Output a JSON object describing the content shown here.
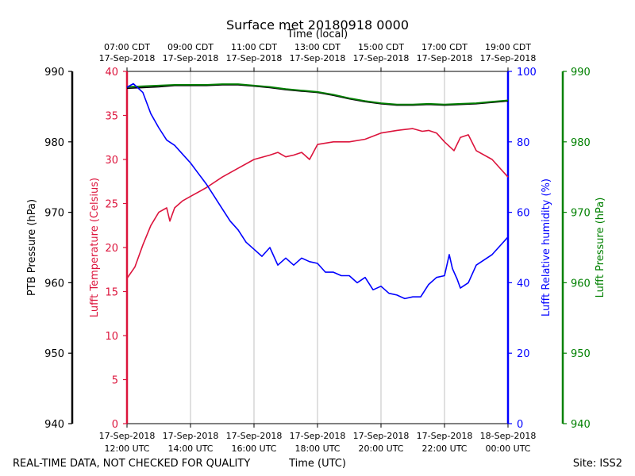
{
  "chart_data": {
    "type": "line",
    "title": "Surface met 20180918 0000",
    "top_axis_label": "Time (local)",
    "bottom_axis_label": "Time (UTC)",
    "footer_left": "REAL-TIME DATA, NOT CHECKED FOR QUALITY",
    "footer_right": "Site: ISS2",
    "x_range_hours": [
      12,
      24
    ],
    "bottom_ticks": [
      {
        "hour": 12,
        "line1": "17-Sep-2018",
        "line2": "12:00 UTC"
      },
      {
        "hour": 14,
        "line1": "17-Sep-2018",
        "line2": "14:00 UTC"
      },
      {
        "hour": 16,
        "line1": "17-Sep-2018",
        "line2": "16:00 UTC"
      },
      {
        "hour": 18,
        "line1": "17-Sep-2018",
        "line2": "18:00 UTC"
      },
      {
        "hour": 20,
        "line1": "17-Sep-2018",
        "line2": "20:00 UTC"
      },
      {
        "hour": 22,
        "line1": "17-Sep-2018",
        "line2": "22:00 UTC"
      },
      {
        "hour": 24,
        "line1": "18-Sep-2018",
        "line2": "00:00 UTC"
      }
    ],
    "top_ticks": [
      {
        "hour": 12,
        "line1": "07:00 CDT",
        "line2": "17-Sep-2018"
      },
      {
        "hour": 14,
        "line1": "09:00 CDT",
        "line2": "17-Sep-2018"
      },
      {
        "hour": 16,
        "line1": "11:00 CDT",
        "line2": "17-Sep-2018"
      },
      {
        "hour": 18,
        "line1": "13:00 CDT",
        "line2": "17-Sep-2018"
      },
      {
        "hour": 20,
        "line1": "15:00 CDT",
        "line2": "17-Sep-2018"
      },
      {
        "hour": 22,
        "line1": "17:00 CDT",
        "line2": "17-Sep-2018"
      },
      {
        "hour": 24,
        "line1": "19:00 CDT",
        "line2": "17-Sep-2018"
      }
    ],
    "axes": [
      {
        "id": "ptb",
        "label": "PTB Pressure (hPa)",
        "range": [
          940,
          990
        ],
        "ticks": [
          940,
          950,
          960,
          970,
          980,
          990
        ],
        "color": "#000000"
      },
      {
        "id": "temp",
        "label": "Lufft Temperature (Celsius)",
        "range": [
          0,
          40
        ],
        "ticks": [
          0,
          5,
          10,
          15,
          20,
          25,
          30,
          35,
          40
        ],
        "color": "#dc143c"
      },
      {
        "id": "rh",
        "label": "Lufft Relative humidity (%)",
        "range": [
          0,
          100
        ],
        "ticks": [
          0,
          20,
          40,
          60,
          80,
          100
        ],
        "color": "#0000ff"
      },
      {
        "id": "lufft_p",
        "label": "Lufft Pressure (hPa)",
        "range": [
          940,
          990
        ],
        "ticks": [
          940,
          950,
          960,
          970,
          980,
          990
        ],
        "color": "#008000"
      }
    ],
    "series": [
      {
        "name": "PTB Pressure",
        "axis": "ptb",
        "color": "#000000",
        "x": [
          12.0,
          12.5,
          13.0,
          13.5,
          14.0,
          14.5,
          15.0,
          15.5,
          16.0,
          16.5,
          17.0,
          17.5,
          18.0,
          18.5,
          19.0,
          19.5,
          20.0,
          20.5,
          21.0,
          21.5,
          22.0,
          22.5,
          23.0,
          23.5,
          24.0
        ],
        "values": [
          987.6,
          987.7,
          987.8,
          988.0,
          988.0,
          988.0,
          988.1,
          988.1,
          987.9,
          987.7,
          987.4,
          987.2,
          987.0,
          986.6,
          986.1,
          985.7,
          985.4,
          985.2,
          985.2,
          985.3,
          985.2,
          985.3,
          985.4,
          985.6,
          985.8
        ]
      },
      {
        "name": "Lufft Pressure",
        "axis": "lufft_p",
        "color": "#008000",
        "x": [
          12.0,
          12.5,
          13.0,
          13.5,
          14.0,
          14.5,
          15.0,
          15.5,
          16.0,
          16.5,
          17.0,
          17.5,
          18.0,
          18.5,
          19.0,
          19.5,
          20.0,
          20.5,
          21.0,
          21.5,
          22.0,
          22.5,
          23.0,
          23.5,
          24.0
        ],
        "values": [
          987.8,
          987.9,
          988.0,
          988.1,
          988.1,
          988.1,
          988.2,
          988.2,
          988.0,
          987.8,
          987.5,
          987.3,
          987.1,
          986.7,
          986.2,
          985.8,
          985.5,
          985.3,
          985.3,
          985.4,
          985.3,
          985.4,
          985.5,
          985.7,
          985.9
        ]
      },
      {
        "name": "Lufft Temperature",
        "axis": "temp",
        "color": "#dc143c",
        "x": [
          12.0,
          12.25,
          12.5,
          12.75,
          13.0,
          13.25,
          13.35,
          13.5,
          13.75,
          14.0,
          14.5,
          15.0,
          15.5,
          16.0,
          16.5,
          16.75,
          17.0,
          17.25,
          17.5,
          17.75,
          18.0,
          18.5,
          19.0,
          19.5,
          20.0,
          20.5,
          21.0,
          21.3,
          21.5,
          21.75,
          22.0,
          22.3,
          22.5,
          22.75,
          23.0,
          23.5,
          24.0
        ],
        "values": [
          16.5,
          17.8,
          20.3,
          22.5,
          24.0,
          24.5,
          23.0,
          24.5,
          25.3,
          25.8,
          26.8,
          28.0,
          29.0,
          30.0,
          30.5,
          30.8,
          30.3,
          30.5,
          30.8,
          30.0,
          31.7,
          32.0,
          32.0,
          32.3,
          33.0,
          33.3,
          33.5,
          33.2,
          33.3,
          33.0,
          32.0,
          31.0,
          32.5,
          32.8,
          31.0,
          30.0,
          28.0
        ]
      },
      {
        "name": "Lufft Relative humidity",
        "axis": "rh",
        "color": "#0000ff",
        "x": [
          12.0,
          12.2,
          12.5,
          12.75,
          13.0,
          13.25,
          13.5,
          13.75,
          14.0,
          14.25,
          14.5,
          14.75,
          15.0,
          15.25,
          15.5,
          15.75,
          16.0,
          16.25,
          16.5,
          16.75,
          17.0,
          17.25,
          17.5,
          17.75,
          18.0,
          18.25,
          18.5,
          18.75,
          19.0,
          19.25,
          19.5,
          19.75,
          20.0,
          20.25,
          20.5,
          20.75,
          21.0,
          21.25,
          21.5,
          21.75,
          22.0,
          22.15,
          22.25,
          22.4,
          22.5,
          22.75,
          23.0,
          23.5,
          24.0
        ],
        "values": [
          95.5,
          96.5,
          94.0,
          88.0,
          84.0,
          80.5,
          79.0,
          76.5,
          74.0,
          71.0,
          68.0,
          64.5,
          61.0,
          57.5,
          55.0,
          51.5,
          49.5,
          47.5,
          50.0,
          45.0,
          47.0,
          45.0,
          47.0,
          46.0,
          45.5,
          43.0,
          43.0,
          42.0,
          42.0,
          40.0,
          41.5,
          38.0,
          39.0,
          37.0,
          36.5,
          35.5,
          36.0,
          36.0,
          39.5,
          41.5,
          42.0,
          48.0,
          44.0,
          41.0,
          38.5,
          40.0,
          45.0,
          48.0,
          53.0
        ]
      }
    ]
  }
}
